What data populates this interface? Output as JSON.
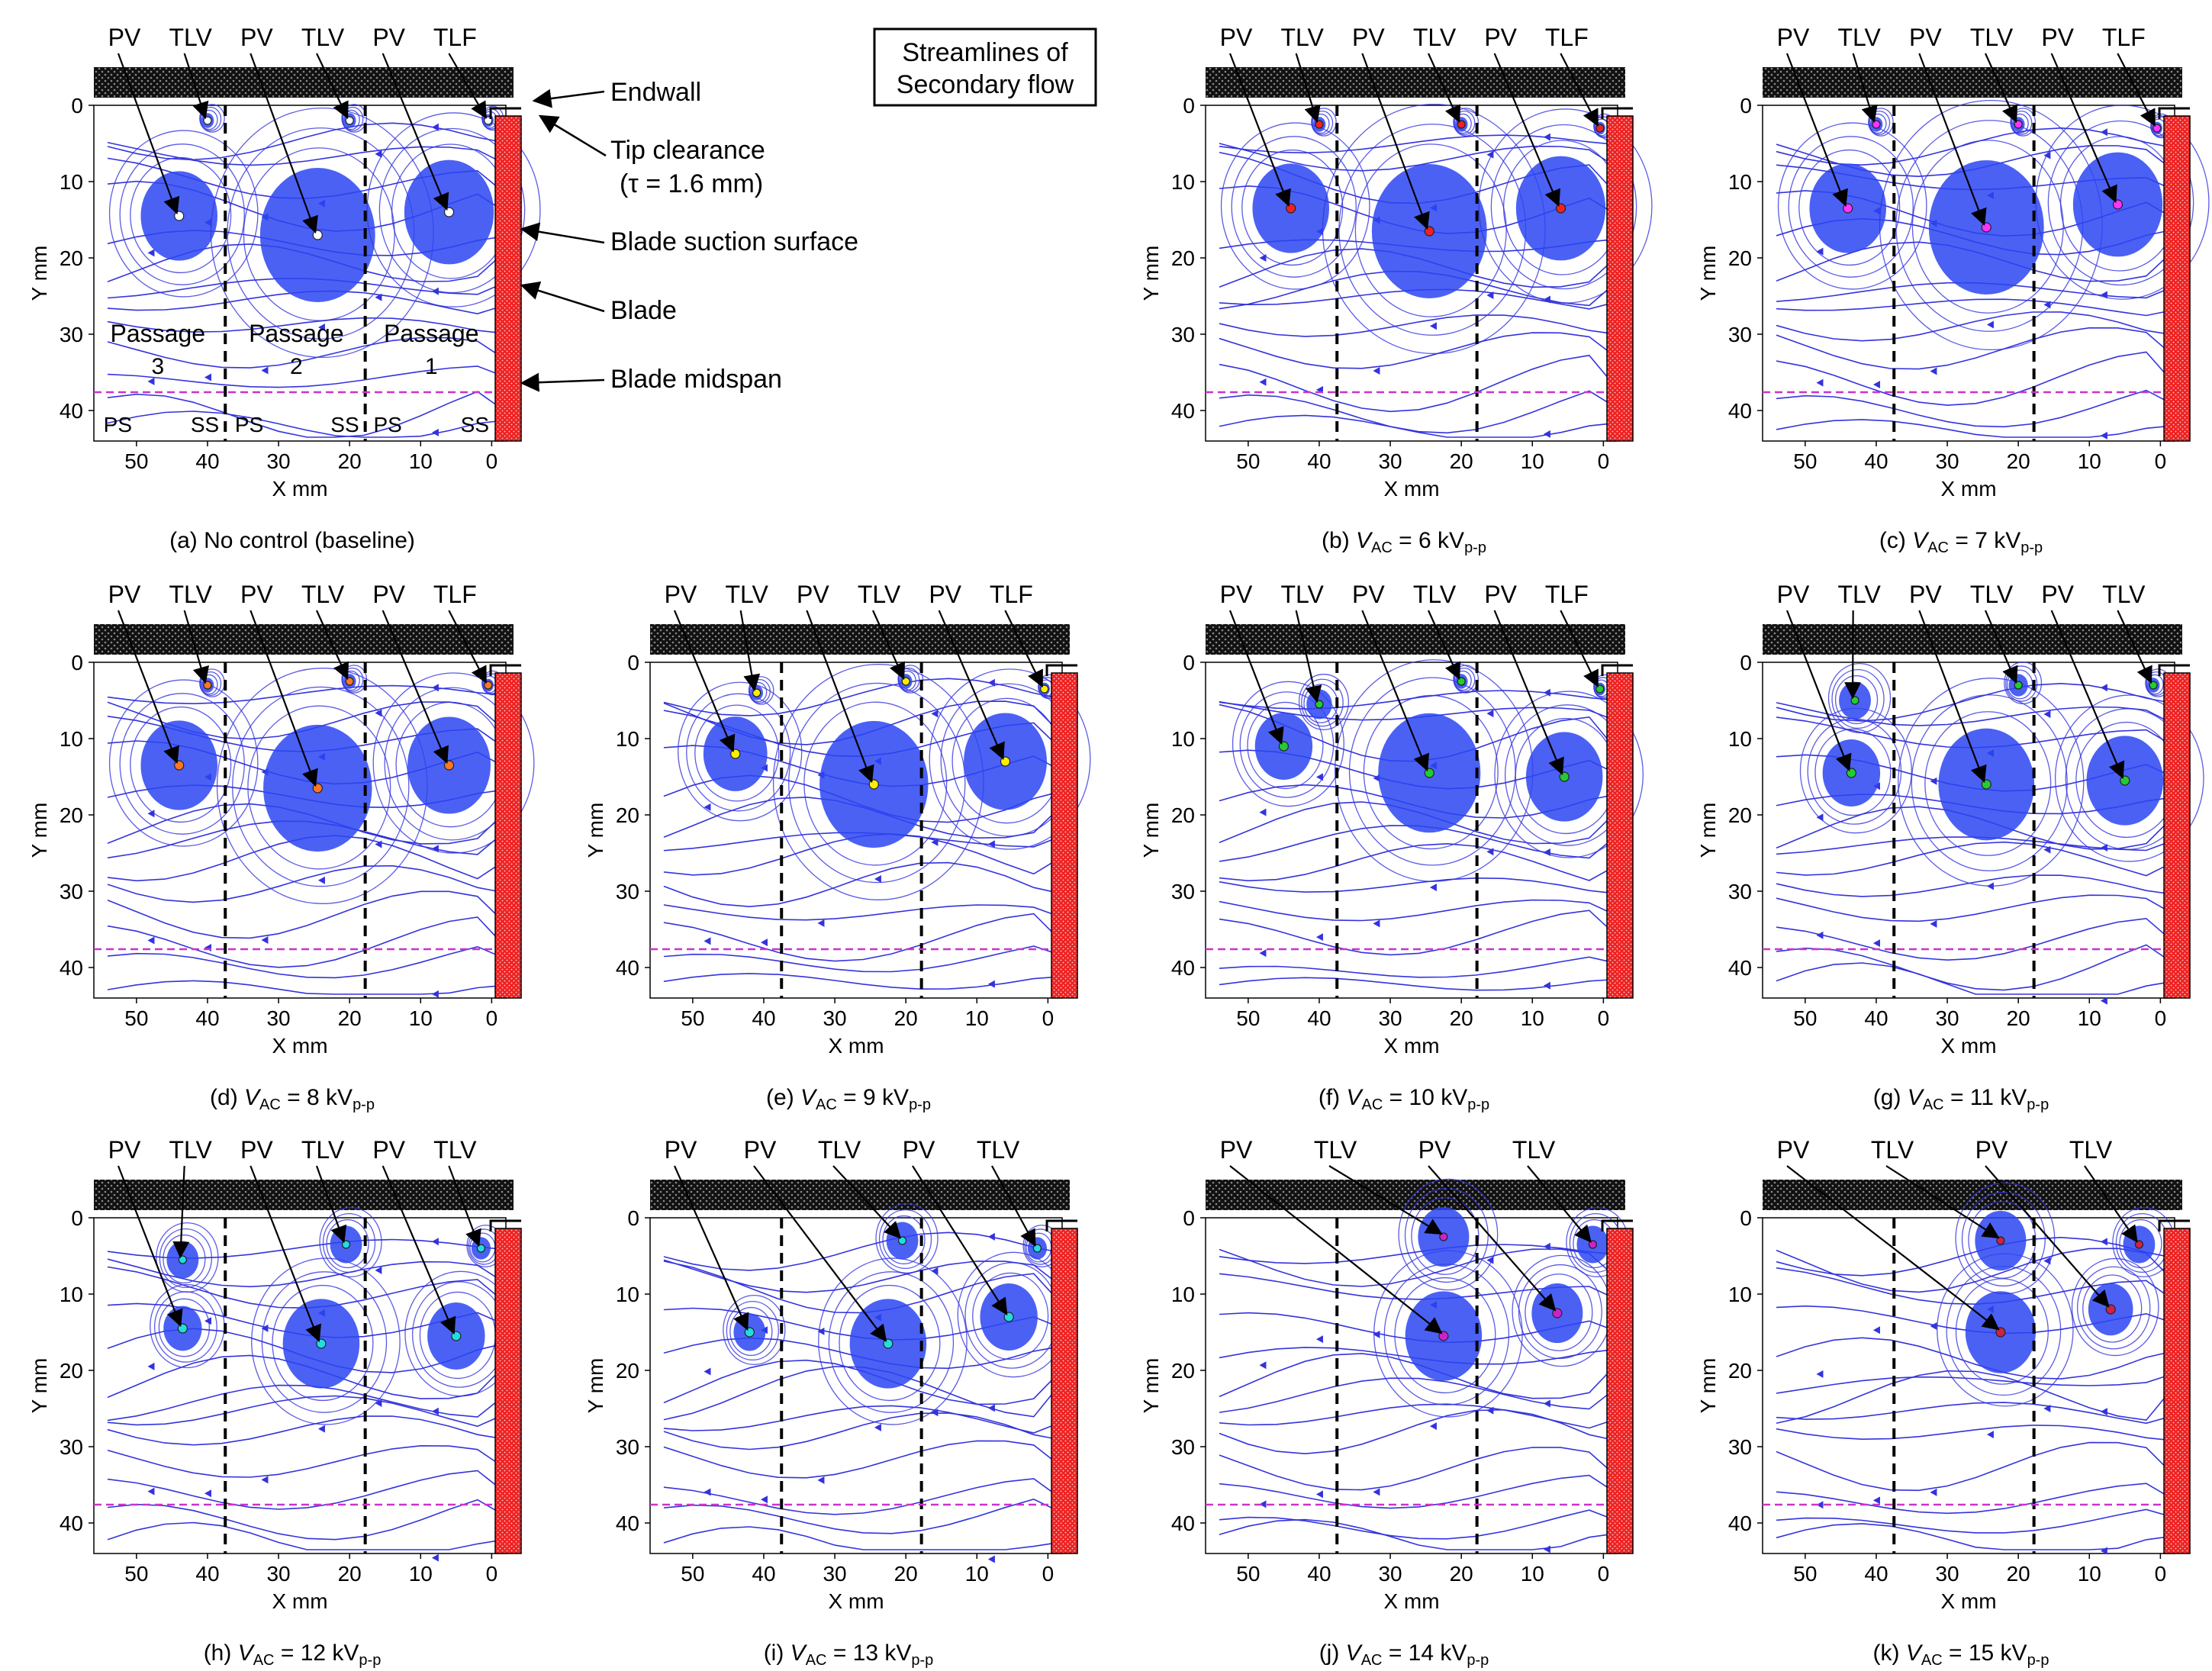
{
  "figure": {
    "title_line1": "Streamlines of",
    "title_line2": "Secondary flow"
  },
  "colors": {
    "streamline": "#3333dd",
    "vortex_core": "#2b45f2",
    "blade": "#ee2222",
    "midspan_line": "#cc33cc",
    "endwall": "#111111"
  },
  "chart_data": {
    "type": "streamline",
    "axes": {
      "xlabel": "X mm",
      "ylabel": "Y mm",
      "xlim": [
        56,
        -2
      ],
      "ylim": [
        0,
        44
      ],
      "xticks": [
        "50",
        "40",
        "30",
        "20",
        "10",
        "0"
      ],
      "yticks": [
        "0",
        "10",
        "20",
        "30",
        "40"
      ]
    },
    "passage_boundaries_x": [
      37.5,
      17.8
    ],
    "midspan_y": 37.6,
    "blade_x": -0.5,
    "annotations": {
      "endwall": "Endwall",
      "tip_clearance": "Tip clearance",
      "tip_clearance_value": "(τ = 1.6 mm)",
      "blade_suction_surface": "Blade suction surface",
      "blade": "Blade",
      "blade_midspan": "Blade midspan",
      "passages": [
        {
          "name": "Passage",
          "number": "3",
          "ps": "PS",
          "ss": "SS"
        },
        {
          "name": "Passage",
          "number": "2",
          "ps": "PS",
          "ss": "SS"
        },
        {
          "name": "Passage",
          "number": "1",
          "ps": "PS",
          "ss": "SS"
        }
      ]
    },
    "panels": [
      {
        "id": "a",
        "caption": "(a) No control (baseline)",
        "voltage": null,
        "core_color": "#ffffff",
        "labels": [
          "PV",
          "TLV",
          "PV",
          "TLV",
          "PV",
          "TLF"
        ],
        "vortices": [
          {
            "type": "PV",
            "x": 44,
            "y": 14.5,
            "r": 6
          },
          {
            "type": "PV",
            "x": 24.5,
            "y": 17,
            "r": 9
          },
          {
            "type": "PV",
            "x": 6,
            "y": 14,
            "r": 7
          },
          {
            "type": "TLV",
            "x": 40,
            "y": 2,
            "r": 1
          },
          {
            "type": "TLV",
            "x": 20,
            "y": 2,
            "r": 1
          },
          {
            "type": "TLF",
            "x": 0.5,
            "y": 2,
            "r": 0.8
          }
        ]
      },
      {
        "id": "b",
        "caption_prefix": "(b)",
        "voltage": "6",
        "core_color": "#ee2222",
        "labels": [
          "PV",
          "TLV",
          "PV",
          "TLV",
          "PV",
          "TLF"
        ],
        "vortices": [
          {
            "type": "PV",
            "x": 44,
            "y": 13.5,
            "r": 6
          },
          {
            "type": "PV",
            "x": 24.5,
            "y": 16.5,
            "r": 9
          },
          {
            "type": "PV",
            "x": 6,
            "y": 13.5,
            "r": 7
          },
          {
            "type": "TLV",
            "x": 40,
            "y": 2.5,
            "r": 1
          },
          {
            "type": "TLV",
            "x": 20,
            "y": 2.5,
            "r": 1
          },
          {
            "type": "TLF",
            "x": 0.5,
            "y": 3,
            "r": 0.8
          }
        ]
      },
      {
        "id": "c",
        "caption_prefix": "(c)",
        "voltage": "7",
        "core_color": "#ff33ff",
        "labels": [
          "PV",
          "TLV",
          "PV",
          "TLV",
          "PV",
          "TLF"
        ],
        "vortices": [
          {
            "type": "PV",
            "x": 44,
            "y": 13.5,
            "r": 6
          },
          {
            "type": "PV",
            "x": 24.5,
            "y": 16,
            "r": 9
          },
          {
            "type": "PV",
            "x": 6,
            "y": 13,
            "r": 7
          },
          {
            "type": "TLV",
            "x": 40,
            "y": 2.5,
            "r": 1
          },
          {
            "type": "TLV",
            "x": 20,
            "y": 2.5,
            "r": 1
          },
          {
            "type": "TLF",
            "x": 0.5,
            "y": 3,
            "r": 0.8
          }
        ]
      },
      {
        "id": "d",
        "caption_prefix": "(d)",
        "voltage": "8",
        "core_color": "#ff7722",
        "labels": [
          "PV",
          "TLV",
          "PV",
          "TLV",
          "PV",
          "TLF"
        ],
        "vortices": [
          {
            "type": "PV",
            "x": 44,
            "y": 13.5,
            "r": 6
          },
          {
            "type": "PV",
            "x": 24.5,
            "y": 16.5,
            "r": 8.5
          },
          {
            "type": "PV",
            "x": 6,
            "y": 13.5,
            "r": 6.5
          },
          {
            "type": "TLV",
            "x": 40,
            "y": 3,
            "r": 1
          },
          {
            "type": "TLV",
            "x": 20,
            "y": 2.5,
            "r": 1
          },
          {
            "type": "TLF",
            "x": 0.5,
            "y": 3,
            "r": 0.8
          }
        ]
      },
      {
        "id": "e",
        "caption_prefix": "(e)",
        "voltage": "9",
        "core_color": "#ffee00",
        "labels": [
          "PV",
          "TLV",
          "PV",
          "TLV",
          "PV",
          "TLF"
        ],
        "vortices": [
          {
            "type": "PV",
            "x": 44,
            "y": 12,
            "r": 5
          },
          {
            "type": "PV",
            "x": 24.5,
            "y": 16,
            "r": 8.5
          },
          {
            "type": "PV",
            "x": 6,
            "y": 13,
            "r": 6.5
          },
          {
            "type": "TLV",
            "x": 41,
            "y": 4,
            "r": 1
          },
          {
            "type": "TLV",
            "x": 20,
            "y": 2.5,
            "r": 1
          },
          {
            "type": "TLF",
            "x": 0.5,
            "y": 3.5,
            "r": 0.8
          }
        ]
      },
      {
        "id": "f",
        "caption_prefix": "(f)",
        "voltage": "10",
        "core_color": "#22cc33",
        "labels": [
          "PV",
          "TLV",
          "PV",
          "TLV",
          "PV",
          "TLF"
        ],
        "vortices": [
          {
            "type": "PV",
            "x": 45,
            "y": 11,
            "r": 4.5
          },
          {
            "type": "PV",
            "x": 24.5,
            "y": 14.5,
            "r": 8
          },
          {
            "type": "PV",
            "x": 5.5,
            "y": 15,
            "r": 6
          },
          {
            "type": "TLV",
            "x": 40,
            "y": 5.5,
            "r": 2
          },
          {
            "type": "TLV",
            "x": 20,
            "y": 2.5,
            "r": 1
          },
          {
            "type": "TLF",
            "x": 0.5,
            "y": 3.5,
            "r": 0.8
          }
        ]
      },
      {
        "id": "g",
        "caption_prefix": "(g)",
        "voltage": "11",
        "core_color": "#22cc33",
        "labels": [
          "PV",
          "TLV",
          "PV",
          "TLV",
          "PV",
          "TLV"
        ],
        "vortices": [
          {
            "type": "PV",
            "x": 43.5,
            "y": 14.5,
            "r": 4.5
          },
          {
            "type": "PV",
            "x": 24.5,
            "y": 16,
            "r": 7.5
          },
          {
            "type": "PV",
            "x": 5,
            "y": 15.5,
            "r": 6
          },
          {
            "type": "TLV",
            "x": 43,
            "y": 5,
            "r": 2.5
          },
          {
            "type": "TLV",
            "x": 20,
            "y": 3,
            "r": 1.5
          },
          {
            "type": "TLV",
            "x": 1,
            "y": 3,
            "r": 1
          }
        ]
      },
      {
        "id": "h",
        "caption_prefix": "(h)",
        "voltage": "12",
        "core_color": "#22dddd",
        "labels": [
          "PV",
          "TLV",
          "PV",
          "TLV",
          "PV",
          "TLV"
        ],
        "vortices": [
          {
            "type": "PV",
            "x": 43.5,
            "y": 14.5,
            "r": 3
          },
          {
            "type": "PV",
            "x": 24,
            "y": 16.5,
            "r": 6
          },
          {
            "type": "PV",
            "x": 5,
            "y": 15.5,
            "r": 4.5
          },
          {
            "type": "TLV",
            "x": 43.5,
            "y": 5.5,
            "r": 2.5
          },
          {
            "type": "TLV",
            "x": 20.5,
            "y": 3.5,
            "r": 2.5
          },
          {
            "type": "TLV",
            "x": 1.5,
            "y": 4,
            "r": 1.5
          }
        ]
      },
      {
        "id": "i",
        "caption_prefix": "(i)",
        "voltage": "13",
        "core_color": "#22dddd",
        "labels": [
          "PV",
          "PV",
          "TLV",
          "PV",
          "TLV"
        ],
        "vortices": [
          {
            "type": "PV",
            "x": 42,
            "y": 15,
            "r": 2.5
          },
          {
            "type": "PV",
            "x": 22.5,
            "y": 16.5,
            "r": 6
          },
          {
            "type": "PV",
            "x": 5.5,
            "y": 13,
            "r": 4.5
          },
          {
            "type": "TLV",
            "x": 20.5,
            "y": 3,
            "r": 2.5
          },
          {
            "type": "TLV",
            "x": 1.5,
            "y": 4,
            "r": 1.5
          }
        ]
      },
      {
        "id": "j",
        "caption_prefix": "(j)",
        "voltage": "14",
        "core_color": "#cc22cc",
        "labels": [
          "PV",
          "TLV",
          "PV",
          "TLV"
        ],
        "vortices": [
          {
            "type": "PV",
            "x": 22.5,
            "y": 15.5,
            "r": 6
          },
          {
            "type": "PV",
            "x": 6.5,
            "y": 12.5,
            "r": 4
          },
          {
            "type": "TLV",
            "x": 22.5,
            "y": 2.5,
            "r": 4
          },
          {
            "type": "TLV",
            "x": 1.5,
            "y": 3.5,
            "r": 2.5
          }
        ]
      },
      {
        "id": "k",
        "caption_prefix": "(k)",
        "voltage": "15",
        "core_color": "#cc2244",
        "labels": [
          "PV",
          "TLV",
          "PV",
          "TLV"
        ],
        "vortices": [
          {
            "type": "PV",
            "x": 22.5,
            "y": 15,
            "r": 5.5
          },
          {
            "type": "PV",
            "x": 7,
            "y": 12,
            "r": 3.5
          },
          {
            "type": "TLV",
            "x": 22.5,
            "y": 3,
            "r": 4
          },
          {
            "type": "TLV",
            "x": 3,
            "y": 3.5,
            "r": 2.5
          }
        ]
      }
    ],
    "caption_voltage_symbol": "V",
    "caption_voltage_subscript": "AC",
    "caption_equals": " = ",
    "caption_unit": " kV",
    "caption_unit_subscript": "p-p"
  }
}
